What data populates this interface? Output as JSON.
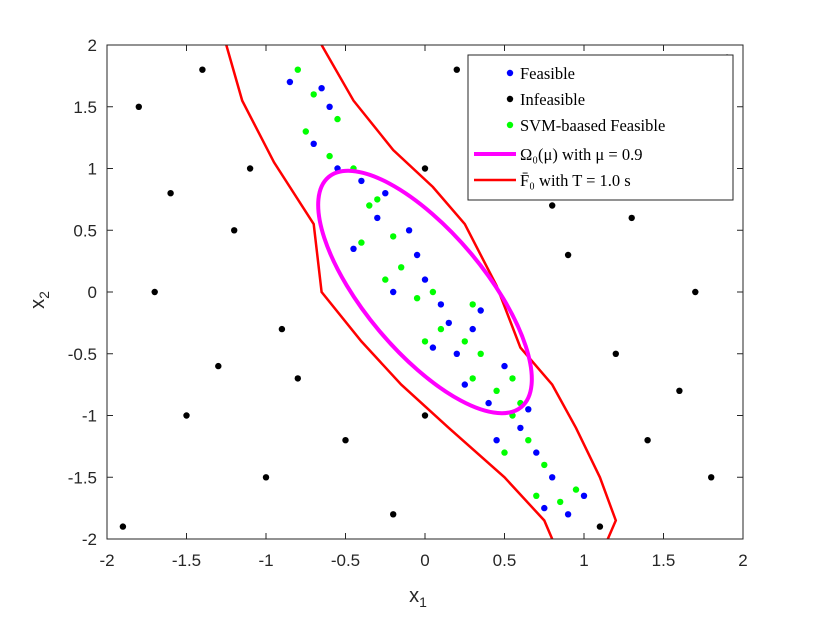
{
  "chart_data": {
    "type": "scatter",
    "xlabel": "x",
    "xlabel_sub": "1",
    "ylabel": "x",
    "ylabel_sub": "2",
    "xlim": [
      -2,
      2
    ],
    "ylim": [
      -2,
      2
    ],
    "xticks": [
      -2,
      -1.5,
      -1,
      -0.5,
      0,
      0.5,
      1,
      1.5,
      2
    ],
    "xtick_labels": [
      "-2",
      "-1.5",
      "-1",
      "-0.5",
      "0",
      "0.5",
      "1",
      "1.5",
      "2"
    ],
    "yticks": [
      -2,
      -1.5,
      -1,
      -0.5,
      0,
      0.5,
      1,
      1.5,
      2
    ],
    "ytick_labels": [
      "-2",
      "-1.5",
      "-1",
      "-0.5",
      "0",
      "0.5",
      "1",
      "1.5",
      "2"
    ],
    "grid": false,
    "legend_position": "top-right",
    "legend": [
      {
        "label": "Feasible",
        "kind": "marker",
        "color": "#0000ff"
      },
      {
        "label": "Infeasible",
        "kind": "marker",
        "color": "#000000"
      },
      {
        "label": "SVM-baased Feasible",
        "kind": "marker",
        "color": "#00ff00"
      },
      {
        "label": "Ω₀(μ) with μ = 0.9",
        "kind": "line",
        "color": "#ff00ff"
      },
      {
        "label": "F̄₀ with T = 1.0 s",
        "kind": "line",
        "color": "#ff0000"
      }
    ],
    "series": [
      {
        "name": "Feasible",
        "color": "#0000ff",
        "points": [
          [
            -0.05,
            0.3
          ],
          [
            0.1,
            -0.1
          ],
          [
            -0.3,
            0.6
          ],
          [
            0.2,
            -0.5
          ],
          [
            0.4,
            -0.9
          ],
          [
            -0.6,
            1.5
          ],
          [
            0.7,
            -1.3
          ],
          [
            0.9,
            -1.8
          ],
          [
            -0.2,
            0.0
          ],
          [
            0.3,
            -0.3
          ],
          [
            0.5,
            -0.6
          ],
          [
            -0.4,
            0.9
          ],
          [
            -0.7,
            1.2
          ],
          [
            0.6,
            -1.1
          ],
          [
            0.8,
            -1.5
          ],
          [
            0.0,
            0.1
          ],
          [
            -0.1,
            0.5
          ],
          [
            0.15,
            -0.25
          ],
          [
            -0.45,
            0.35
          ],
          [
            0.25,
            -0.75
          ],
          [
            -0.85,
            1.7
          ],
          [
            -0.55,
            1.0
          ],
          [
            0.65,
            -0.95
          ],
          [
            1.0,
            -1.65
          ],
          [
            0.35,
            -0.15
          ],
          [
            -0.25,
            0.8
          ],
          [
            0.05,
            -0.45
          ],
          [
            -0.65,
            1.65
          ],
          [
            0.75,
            -1.75
          ],
          [
            0.45,
            -1.2
          ]
        ]
      },
      {
        "name": "Infeasible",
        "color": "#000000",
        "points": [
          [
            -1.5,
            -1.0
          ],
          [
            -1.2,
            0.5
          ],
          [
            1.5,
            1.0
          ],
          [
            1.2,
            -0.5
          ],
          [
            -1.8,
            1.5
          ],
          [
            1.8,
            -1.5
          ],
          [
            0.5,
            1.2
          ],
          [
            -0.5,
            -1.2
          ],
          [
            -1.0,
            -1.5
          ],
          [
            1.0,
            1.5
          ],
          [
            -1.7,
            0.0
          ],
          [
            1.7,
            0.0
          ],
          [
            -1.3,
            -0.6
          ],
          [
            1.3,
            0.6
          ],
          [
            0.2,
            1.8
          ],
          [
            -0.2,
            -1.8
          ],
          [
            -1.9,
            -1.9
          ],
          [
            1.9,
            1.9
          ],
          [
            -0.9,
            -0.3
          ],
          [
            0.9,
            0.3
          ],
          [
            -1.4,
            1.8
          ],
          [
            1.4,
            -1.2
          ],
          [
            0.0,
            -1.0
          ],
          [
            0.0,
            1.0
          ],
          [
            1.6,
            -0.8
          ],
          [
            -1.6,
            0.8
          ],
          [
            0.8,
            0.7
          ],
          [
            -0.8,
            -0.7
          ],
          [
            1.1,
            -1.9
          ],
          [
            -1.1,
            1.0
          ]
        ]
      },
      {
        "name": "SVM-baased Feasible",
        "color": "#00ff00",
        "points": [
          [
            -0.15,
            0.2
          ],
          [
            0.05,
            0.0
          ],
          [
            -0.35,
            0.7
          ],
          [
            0.25,
            -0.4
          ],
          [
            0.45,
            -0.8
          ],
          [
            -0.55,
            1.4
          ],
          [
            0.65,
            -1.2
          ],
          [
            0.85,
            -1.7
          ],
          [
            -0.25,
            0.1
          ],
          [
            0.35,
            -0.5
          ],
          [
            0.55,
            -0.7
          ],
          [
            -0.45,
            1.0
          ],
          [
            -0.75,
            1.3
          ],
          [
            0.55,
            -1.0
          ],
          [
            0.75,
            -1.4
          ],
          [
            -0.05,
            -0.05
          ],
          [
            -0.2,
            0.45
          ],
          [
            0.1,
            -0.3
          ],
          [
            -0.4,
            0.4
          ],
          [
            0.3,
            -0.7
          ],
          [
            -0.8,
            1.8
          ],
          [
            -0.6,
            1.1
          ],
          [
            0.6,
            -0.9
          ],
          [
            0.95,
            -1.6
          ],
          [
            0.3,
            -0.1
          ],
          [
            -0.3,
            0.75
          ],
          [
            0.0,
            -0.4
          ],
          [
            -0.7,
            1.6
          ],
          [
            0.7,
            -1.65
          ],
          [
            0.5,
            -1.3
          ]
        ]
      }
    ],
    "ellipse": {
      "name": "Ω₀(μ)",
      "mu": 0.9,
      "center": [
        0.0,
        0.0
      ],
      "color": "#ff00ff"
    },
    "boundary": {
      "name": "F̄₀",
      "T": "1.0 s",
      "color": "#ff0000"
    }
  }
}
